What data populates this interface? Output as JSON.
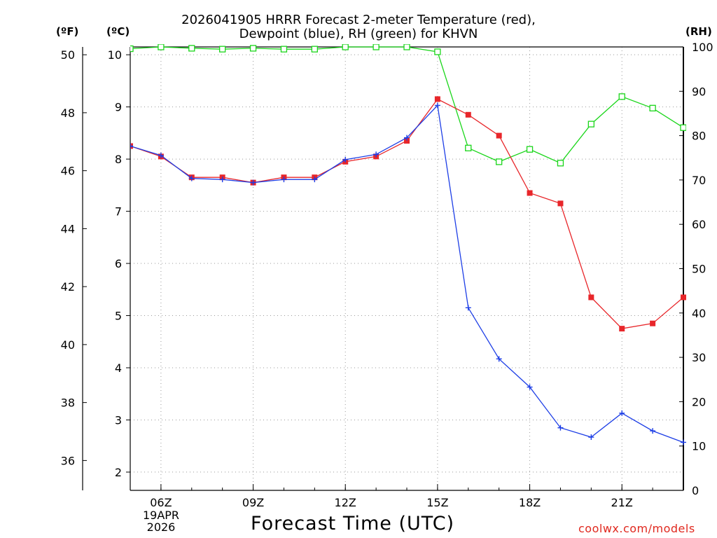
{
  "title_line1": "2026041905 HRRR Forecast 2-meter Temperature (red),",
  "title_line2": "Dewpoint (blue), RH (green) for KHVN",
  "unit_f": "(ºF)",
  "unit_c": "(ºC)",
  "unit_rh": "(RH)",
  "xlabel": "Forecast Time (UTC)",
  "credit": "coolwx.com/models",
  "date_label": {
    "line1": "19APR",
    "line2": "2026"
  },
  "colors": {
    "temperature": "#e8262a",
    "dewpoint": "#1d3ee6",
    "rh": "#1ad61a",
    "grid": "#999999"
  },
  "chart_data": {
    "type": "line",
    "title": "2026041905 HRRR Forecast 2-meter Temperature (red), Dewpoint (blue), RH (green) for KHVN",
    "xlabel": "Forecast Time (UTC)",
    "x": [
      5,
      6,
      7,
      8,
      9,
      10,
      11,
      12,
      13,
      14,
      15,
      16,
      17,
      18,
      19,
      20,
      21,
      22,
      23
    ],
    "xlim": [
      5,
      23
    ],
    "x_ticks": [
      {
        "value": 6,
        "label": "06Z"
      },
      {
        "value": 9,
        "label": "09Z"
      },
      {
        "value": 12,
        "label": "12Z"
      },
      {
        "value": 15,
        "label": "15Z"
      },
      {
        "value": 18,
        "label": "18Z"
      },
      {
        "value": 21,
        "label": "21Z"
      }
    ],
    "left_axis_c": {
      "label": "(ºC)",
      "range": [
        1.65,
        10.15
      ],
      "ticks": [
        2,
        3,
        4,
        5,
        6,
        7,
        8,
        9,
        10
      ]
    },
    "left_axis_f": {
      "label": "(ºF)",
      "ticks": [
        36,
        38,
        40,
        42,
        44,
        46,
        48,
        50
      ]
    },
    "right_axis_rh": {
      "label": "(RH)",
      "range": [
        0,
        100
      ],
      "ticks": [
        0,
        10,
        20,
        30,
        40,
        50,
        60,
        70,
        80,
        90,
        100
      ]
    },
    "grid": true,
    "series": [
      {
        "name": "Temperature",
        "axis": "c",
        "marker": "filled-square",
        "values": [
          8.25,
          8.05,
          7.65,
          7.65,
          7.55,
          7.65,
          7.65,
          7.95,
          8.05,
          8.35,
          9.15,
          8.85,
          8.45,
          7.35,
          7.15,
          5.35,
          4.75,
          4.85,
          5.35
        ]
      },
      {
        "name": "Dewpoint",
        "axis": "c",
        "marker": "plus",
        "values": [
          8.25,
          8.07,
          7.63,
          7.61,
          7.55,
          7.61,
          7.61,
          7.99,
          8.09,
          8.41,
          9.03,
          5.15,
          4.17,
          3.63,
          2.85,
          2.67,
          3.13,
          2.79,
          2.57
        ]
      },
      {
        "name": "RH",
        "axis": "rh",
        "marker": "open-square",
        "values": [
          99.6,
          100,
          99.7,
          99.5,
          99.7,
          99.5,
          99.5,
          100,
          100,
          100,
          98.9,
          77.2,
          74.1,
          76.9,
          73.8,
          82.6,
          88.8,
          86.2,
          81.8
        ]
      }
    ]
  }
}
